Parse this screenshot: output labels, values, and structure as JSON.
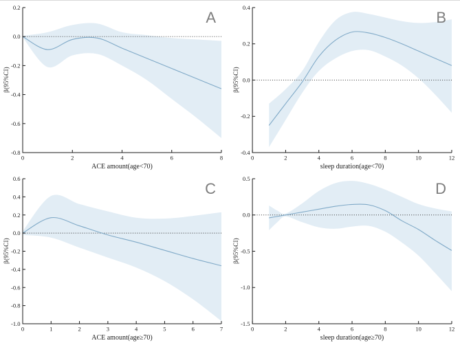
{
  "figure": {
    "background": "#ffffff"
  },
  "colors": {
    "line": "#7fa9c7",
    "band": "#e2edf5",
    "axis": "#1a1a1a",
    "tick_text": "#1a1a1a",
    "zero_line": "#333333",
    "panel_letter": "#7d7d7d"
  },
  "chart_data": [
    {
      "type": "line",
      "panel_label": "A",
      "xlabel": "ACE amount(age<70)",
      "ylabel": "β(95%CI)",
      "xlim": [
        0,
        8
      ],
      "xticks": [
        "0",
        "2",
        "4",
        "6",
        "8"
      ],
      "ylim": [
        -0.8,
        0.2
      ],
      "yticks": [
        "0.2",
        "0.0",
        "-0.2",
        "-0.4",
        "-0.6",
        "-0.8"
      ],
      "zero_reference_line": 0,
      "x": [
        0,
        1,
        2,
        3,
        4,
        5,
        6,
        7,
        8
      ],
      "beta": [
        0,
        -0.09,
        -0.02,
        -0.01,
        -0.08,
        -0.15,
        -0.22,
        -0.29,
        -0.36
      ],
      "ci_upper": [
        0.005,
        0.03,
        0.08,
        0.09,
        0.03,
        0.01,
        -0.01,
        -0.02,
        -0.03
      ],
      "ci_lower": [
        -0.005,
        -0.21,
        -0.13,
        -0.12,
        -0.2,
        -0.3,
        -0.43,
        -0.56,
        -0.7
      ]
    },
    {
      "type": "line",
      "panel_label": "B",
      "xlabel": "sleep duration(age<70)",
      "ylabel": "β(95%CI)",
      "xlim": [
        0,
        12
      ],
      "xticks": [
        "0",
        "2",
        "4",
        "6",
        "8",
        "10",
        "12"
      ],
      "ylim": [
        -0.4,
        0.4
      ],
      "yticks": [
        "0.4",
        "0.2",
        "0.0",
        "-0.2",
        "-0.4"
      ],
      "zero_reference_line": 0,
      "x": [
        1,
        2,
        3,
        4,
        5,
        6,
        7,
        8,
        9,
        10,
        11,
        12
      ],
      "beta": [
        -0.25,
        -0.13,
        -0.01,
        0.13,
        0.22,
        0.265,
        0.26,
        0.235,
        0.2,
        0.16,
        0.12,
        0.08
      ],
      "ci_upper": [
        -0.13,
        -0.05,
        0.05,
        0.21,
        0.33,
        0.375,
        0.365,
        0.345,
        0.325,
        0.315,
        0.32,
        0.335
      ],
      "ci_lower": [
        -0.37,
        -0.22,
        -0.07,
        0.05,
        0.12,
        0.16,
        0.165,
        0.13,
        0.08,
        0.01,
        -0.08,
        -0.18
      ]
    },
    {
      "type": "line",
      "panel_label": "C",
      "xlabel": "ACE amount(age≥70)",
      "ylabel": "β(95%CI)",
      "xlim": [
        0,
        7
      ],
      "xticks": [
        "0",
        "1",
        "2",
        "3",
        "4",
        "5",
        "6",
        "7"
      ],
      "ylim": [
        -1.0,
        0.6
      ],
      "yticks": [
        "0.6",
        "0.4",
        "0.2",
        "0.0",
        "-0.2",
        "-0.4",
        "-0.6",
        "-0.8",
        "-1.0"
      ],
      "zero_reference_line": 0,
      "x": [
        0,
        1,
        2,
        3,
        4,
        5,
        6,
        7
      ],
      "beta": [
        0,
        0.17,
        0.08,
        -0.02,
        -0.1,
        -0.19,
        -0.28,
        -0.36
      ],
      "ci_upper": [
        0.02,
        0.41,
        0.32,
        0.24,
        0.17,
        0.16,
        0.19,
        0.23
      ],
      "ci_lower": [
        -0.02,
        -0.05,
        -0.16,
        -0.27,
        -0.38,
        -0.53,
        -0.73,
        -0.97
      ]
    },
    {
      "type": "line",
      "panel_label": "D",
      "xlabel": "sleep duration(age≥70)",
      "ylabel": "β(95%CI)",
      "xlim": [
        0,
        12
      ],
      "xticks": [
        "0",
        "2",
        "4",
        "6",
        "8",
        "10",
        "12"
      ],
      "ylim": [
        -1.5,
        0.5
      ],
      "yticks": [
        "0.5",
        "0.0",
        "-0.5",
        "-1.0",
        "-1.5"
      ],
      "zero_reference_line": 0,
      "x": [
        1,
        1.5,
        2,
        3,
        4,
        5,
        6,
        7,
        8,
        9,
        10,
        11,
        12
      ],
      "beta": [
        -0.04,
        -0.02,
        0,
        0.04,
        0.08,
        0.12,
        0.145,
        0.14,
        0.06,
        -0.08,
        -0.2,
        -0.35,
        -0.49
      ],
      "ci_upper": [
        0.13,
        0.06,
        0.02,
        0.16,
        0.33,
        0.44,
        0.47,
        0.43,
        0.35,
        0.25,
        0.15,
        0.09,
        0.05
      ],
      "ci_lower": [
        -0.21,
        -0.1,
        -0.02,
        -0.1,
        -0.17,
        -0.19,
        -0.16,
        -0.15,
        -0.23,
        -0.38,
        -0.56,
        -0.8,
        -1.05
      ]
    }
  ]
}
